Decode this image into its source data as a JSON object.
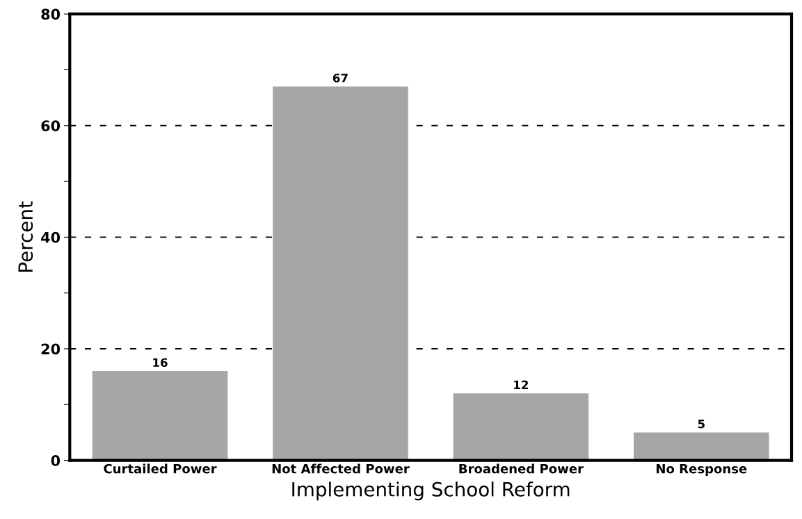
{
  "chart_data": {
    "type": "bar",
    "xlabel": "Implementing School Reform",
    "ylabel": "Percent",
    "categories": [
      "Curtailed Power",
      "Not Affected Power",
      "Broadened Power",
      "No Response"
    ],
    "values": [
      16,
      67,
      12,
      5
    ],
    "color": "#a6a6a6",
    "ylim": [
      0,
      80
    ],
    "yticks": [
      0,
      {
        "value": 10,
        "label": null
      },
      20,
      {
        "value": 30,
        "label": null
      },
      40,
      {
        "value": 50,
        "label": null
      },
      60,
      {
        "value": 70,
        "label": null
      },
      80
    ],
    "grid": "y",
    "data_labels": true
  }
}
